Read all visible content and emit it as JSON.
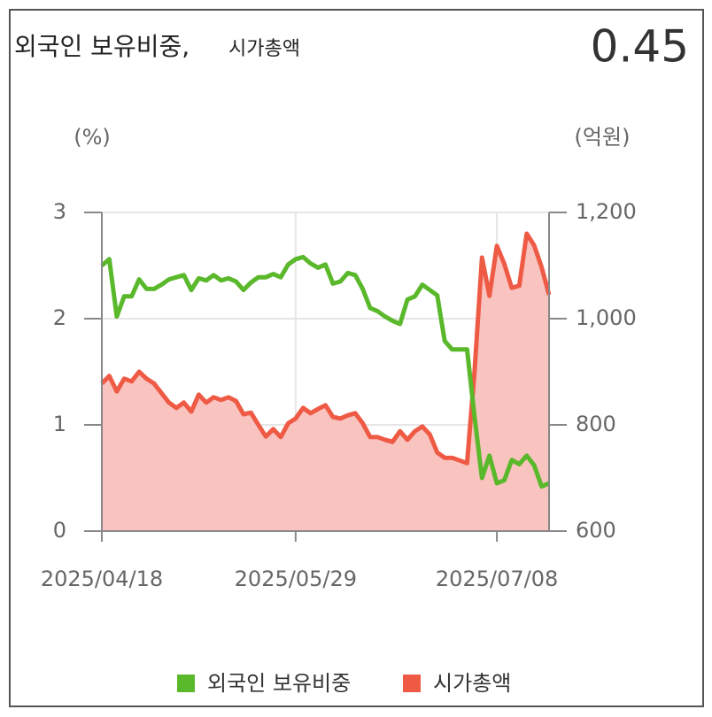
{
  "chart_data": {
    "type": "line",
    "title": "외국인 보유비중,",
    "subtitle": "시가총액",
    "current_value": 0.45,
    "ylabel": "(%)",
    "y2label": "(억원)",
    "categories": [
      "2025/04/18",
      null,
      null,
      null,
      null,
      null,
      null,
      null,
      null,
      null,
      null,
      null,
      null,
      null,
      null,
      null,
      null,
      null,
      null,
      null,
      null,
      null,
      null,
      null,
      null,
      null,
      "2025/05/29",
      null,
      null,
      null,
      null,
      null,
      null,
      null,
      null,
      null,
      null,
      null,
      null,
      null,
      null,
      null,
      null,
      null,
      null,
      null,
      null,
      null,
      null,
      null,
      null,
      null,
      null,
      "2025/07/08",
      null,
      null,
      null,
      null,
      null,
      null,
      null
    ],
    "series": [
      {
        "name": "외국인 보유비중",
        "color": "#5ab82b",
        "axis": "y",
        "values": [
          2.5,
          2.56,
          2.02,
          2.21,
          2.21,
          2.37,
          2.28,
          2.28,
          2.32,
          2.37,
          2.39,
          2.41,
          2.27,
          2.38,
          2.36,
          2.41,
          2.36,
          2.38,
          2.35,
          2.27,
          2.34,
          2.39,
          2.39,
          2.42,
          2.39,
          2.51,
          2.56,
          2.58,
          2.52,
          2.48,
          2.51,
          2.33,
          2.35,
          2.43,
          2.41,
          2.28,
          2.1,
          2.07,
          2.02,
          1.98,
          1.95,
          2.18,
          2.21,
          2.32,
          2.27,
          2.22,
          1.79,
          1.71,
          1.71,
          1.71,
          1.08,
          0.5,
          0.71,
          0.45,
          0.48,
          0.67,
          0.63,
          0.71,
          0.62,
          0.42,
          0.45
        ]
      },
      {
        "name": "시가총액",
        "color": "#ef5a45",
        "fill": "#f9c3bf",
        "axis": "y2",
        "values": [
          878,
          892,
          863,
          887,
          882,
          900,
          887,
          878,
          860,
          842,
          832,
          842,
          825,
          857,
          842,
          852,
          847,
          852,
          845,
          820,
          823,
          800,
          778,
          792,
          777,
          803,
          812,
          832,
          822,
          830,
          837,
          815,
          812,
          818,
          822,
          803,
          777,
          777,
          772,
          768,
          788,
          772,
          788,
          797,
          782,
          748,
          738,
          738,
          733,
          728,
          900,
          1115,
          1043,
          1137,
          1103,
          1058,
          1062,
          1160,
          1138,
          1097,
          1045
        ]
      }
    ],
    "ylim": [
      0,
      3
    ],
    "yticks": [
      0,
      1,
      2,
      3
    ],
    "y2lim": [
      600,
      1200
    ],
    "y2ticks": [
      600,
      800,
      {
        "value": 1000,
        "label": "1,000"
      },
      {
        "value": 1200,
        "label": "1,200"
      }
    ],
    "grid": true,
    "legend": "bottom"
  }
}
